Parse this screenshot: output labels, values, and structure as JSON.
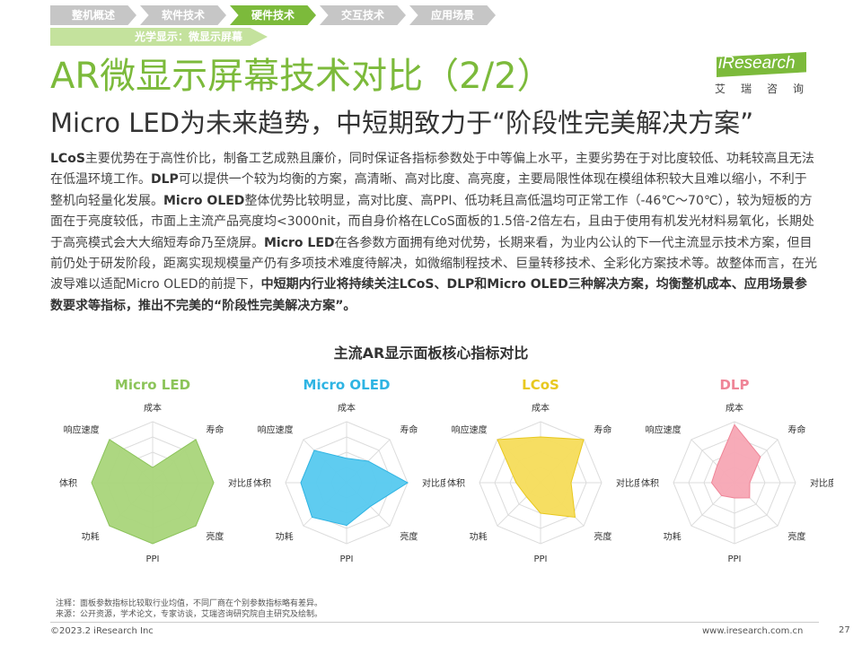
{
  "nav": {
    "tabs": [
      {
        "label": "整机概述",
        "active": false
      },
      {
        "label": "软件技术",
        "active": false
      },
      {
        "label": "硬件技术",
        "active": true
      },
      {
        "label": "交互技术",
        "active": false
      },
      {
        "label": "应用场景",
        "active": false
      }
    ],
    "subnav": "光学显示：微显示屏幕"
  },
  "header": {
    "title": "AR微显示屏幕技术对比（2/2）",
    "subtitle": "Micro LED为未来趋势，中短期致力于“阶段性完美解决方案”"
  },
  "logo": {
    "text": "iResearch",
    "sub": "艾瑞咨询"
  },
  "body": {
    "p1_b": "LCoS",
    "p1": "主要优势在于高性价比，制备工艺成熟且廉价，同时保证各指标参数处于中等偏上水平，主要劣势在于对比度较低、功耗较高且无法在低温环境工作。",
    "p2_b": "DLP",
    "p2": "可以提供一个较为均衡的方案，高清晰、高对比度、高亮度，主要局限性体现在模组体积较大且难以缩小，不利于整机向轻量化发展。",
    "p3_b": "Micro OLED",
    "p3": "整体优势比较明显，高对比度、高PPI、低功耗且高低温均可正常工作（-46℃～70℃），较为短板的方面在于亮度较低，市面上主流产品亮度均<3000nit，而自身价格在LCoS面板的1.5倍-2倍左右，且由于使用有机发光材料易氧化，长期处于高亮模式会大大缩短寿命乃至烧屏。",
    "p4_b": "Micro LED",
    "p4": "在各参数方面拥有绝对优势，长期来看，为业内公认的下一代主流显示技术方案，但目前仍处于研发阶段，距离实现规模量产仍有多项技术难度待解决，如微缩制程技术、巨量转移技术、全彩化方案技术等。故整体而言，在光波导难以适配Micro OLED的前提下，",
    "p5_b": "中短期内行业将持续关注LCoS、DLP和Micro OLED三种解决方案，均衡整机成本、应用场景参数要求等指标，推出不完美的“阶段性完美解决方案”。"
  },
  "chart_data": {
    "type": "radar",
    "title": "主流AR显示面板核心指标对比",
    "axes": [
      "成本",
      "寿命",
      "对比度",
      "亮度",
      "PPI",
      "功耗",
      "体积",
      "响应速度"
    ],
    "scale": [
      0,
      4
    ],
    "series": [
      {
        "name": "Micro LED",
        "color": "#a9d57a",
        "stroke": "#8cc45a",
        "values": [
          1,
          4,
          4,
          4,
          4,
          4,
          4,
          4
        ]
      },
      {
        "name": "Micro OLED",
        "color": "#56c9ef",
        "stroke": "#2fb4e3",
        "values": [
          1.6,
          2,
          4,
          2.2,
          2.8,
          3.2,
          3,
          3
        ]
      },
      {
        "name": "LCoS",
        "color": "#f6dc5a",
        "stroke": "#e8c81f",
        "values": [
          3,
          4,
          2,
          3.2,
          2,
          1.3,
          1.6,
          4
        ]
      },
      {
        "name": "DLP",
        "color": "#f7a6b4",
        "stroke": "#ef8597",
        "values": [
          3.8,
          2.4,
          1,
          1.4,
          1,
          1.2,
          1.5,
          1.6
        ]
      }
    ]
  },
  "footer": {
    "note": "注释：面板参数指标比较取行业均值，不同厂商在个别参数指标略有差异。",
    "source": "来源：公开资源，学术论文，专家访谈，艾瑞咨询研究院自主研究及绘制。",
    "copyright": "©2023.2 iResearch Inc",
    "website": "www.iresearch.com.cn",
    "page": "27"
  }
}
